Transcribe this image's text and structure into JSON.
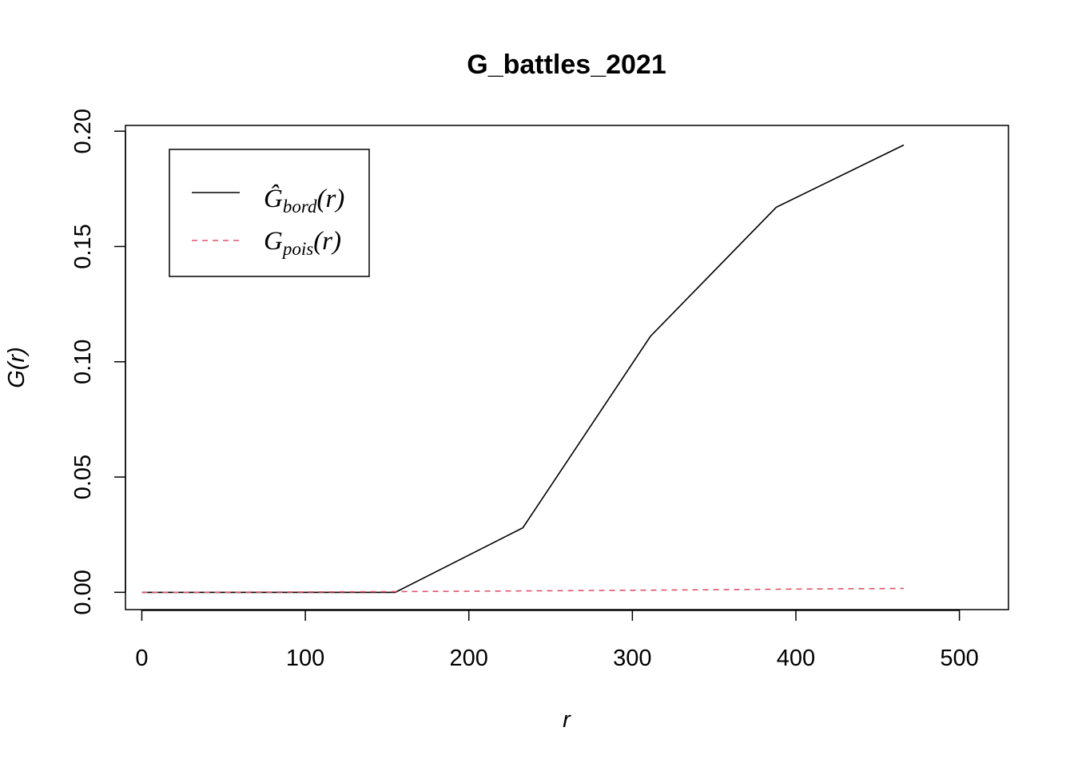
{
  "chart_data": {
    "type": "line",
    "title": "G_battles_2021",
    "xlabel": "r",
    "ylabel": "G(r)",
    "xlim": [
      -10,
      530
    ],
    "ylim": [
      -0.0075,
      0.2025
    ],
    "x_ticks": [
      0,
      100,
      200,
      300,
      400,
      500
    ],
    "x_tick_labels": [
      "0",
      "100",
      "200",
      "300",
      "400",
      "500"
    ],
    "y_ticks": [
      0.0,
      0.05,
      0.1,
      0.15,
      0.2
    ],
    "y_tick_labels": [
      "0.00",
      "0.05",
      "0.10",
      "0.15",
      "0.20"
    ],
    "grid": false,
    "legend_position": "top-left",
    "series": [
      {
        "name": "Ĝbord(r)",
        "legend_main": "Ĝ",
        "legend_sub": "bord",
        "legend_arg": "(r)",
        "color": "#000000",
        "dash": "solid",
        "x": [
          0,
          155,
          233,
          311,
          388,
          466
        ],
        "values": [
          0.0,
          0.0,
          0.028,
          0.111,
          0.167,
          0.194
        ]
      },
      {
        "name": "Gpois(r)",
        "legend_main": "G",
        "legend_sub": "pois",
        "legend_arg": "(r)",
        "color": "#DF536B",
        "dash": "dashed",
        "x": [
          0,
          50,
          100,
          150,
          200,
          250,
          300,
          350,
          400,
          466
        ],
        "values": [
          0.0,
          6e-05,
          0.00017,
          0.0003,
          0.00048,
          0.00068,
          0.0009,
          0.00114,
          0.0014,
          0.0017
        ]
      }
    ]
  }
}
